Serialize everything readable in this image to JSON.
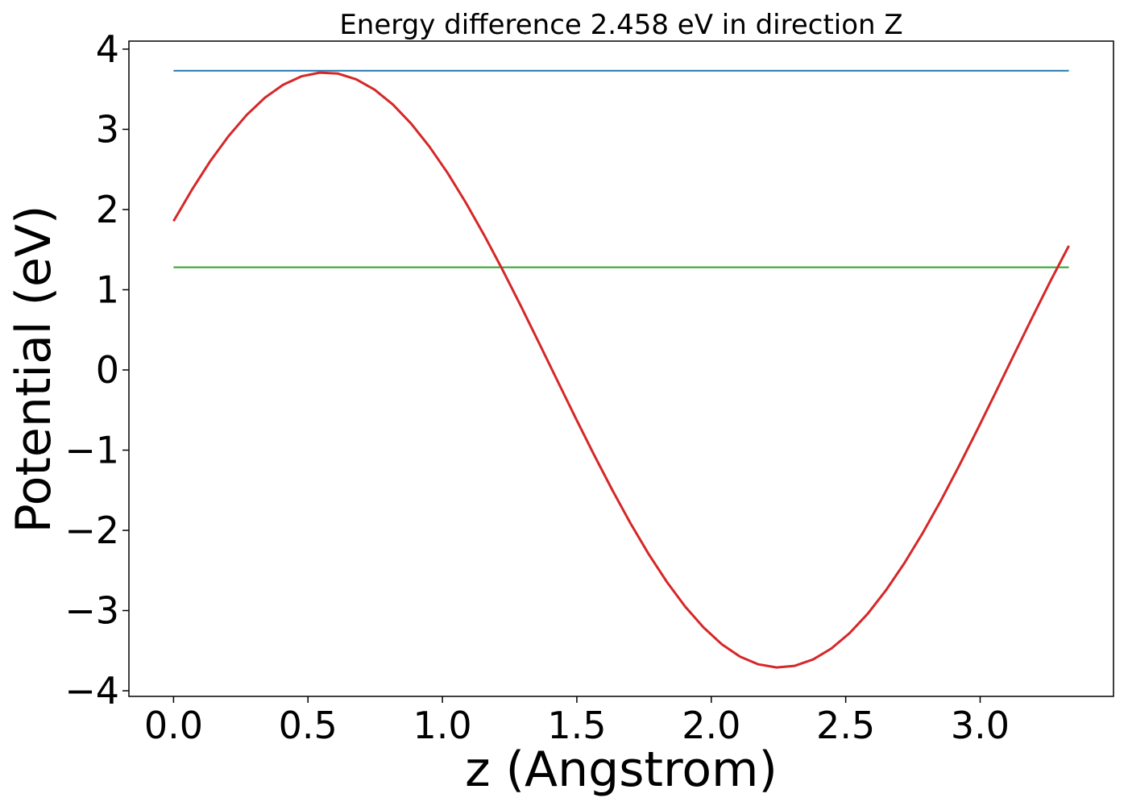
{
  "chart_data": {
    "type": "line",
    "title": "Energy difference 2.458 eV in direction Z",
    "xlabel": "z (Angstrom)",
    "ylabel": "Potential (eV)",
    "xlim": [
      -0.166,
      3.496
    ],
    "ylim": [
      -4.07,
      4.1
    ],
    "xticks": [
      0.0,
      0.5,
      1.0,
      1.5,
      2.0,
      2.5,
      3.0
    ],
    "xtick_labels": [
      "0.0",
      "0.5",
      "1.0",
      "1.5",
      "2.0",
      "2.5",
      "3.0"
    ],
    "yticks": [
      -4,
      -3,
      -2,
      -1,
      0,
      1,
      2,
      3,
      4
    ],
    "ytick_labels": [
      "−4",
      "−3",
      "−2",
      "−1",
      "0",
      "1",
      "2",
      "3",
      "4"
    ],
    "grid": false,
    "potential": {
      "color": "#d62728",
      "x_start": 0.0,
      "x_end": 3.33,
      "n_points": 50,
      "amplitude": 3.71,
      "phase_deg": 30,
      "period": 3.38
    },
    "series": [
      {
        "color": "#1f77b4",
        "x": [
          0.0,
          3.33
        ],
        "y": [
          3.73,
          3.73
        ]
      },
      {
        "color": "#2ca02c",
        "x": [
          0.0,
          3.33
        ],
        "y": [
          1.28,
          1.28
        ]
      }
    ]
  }
}
